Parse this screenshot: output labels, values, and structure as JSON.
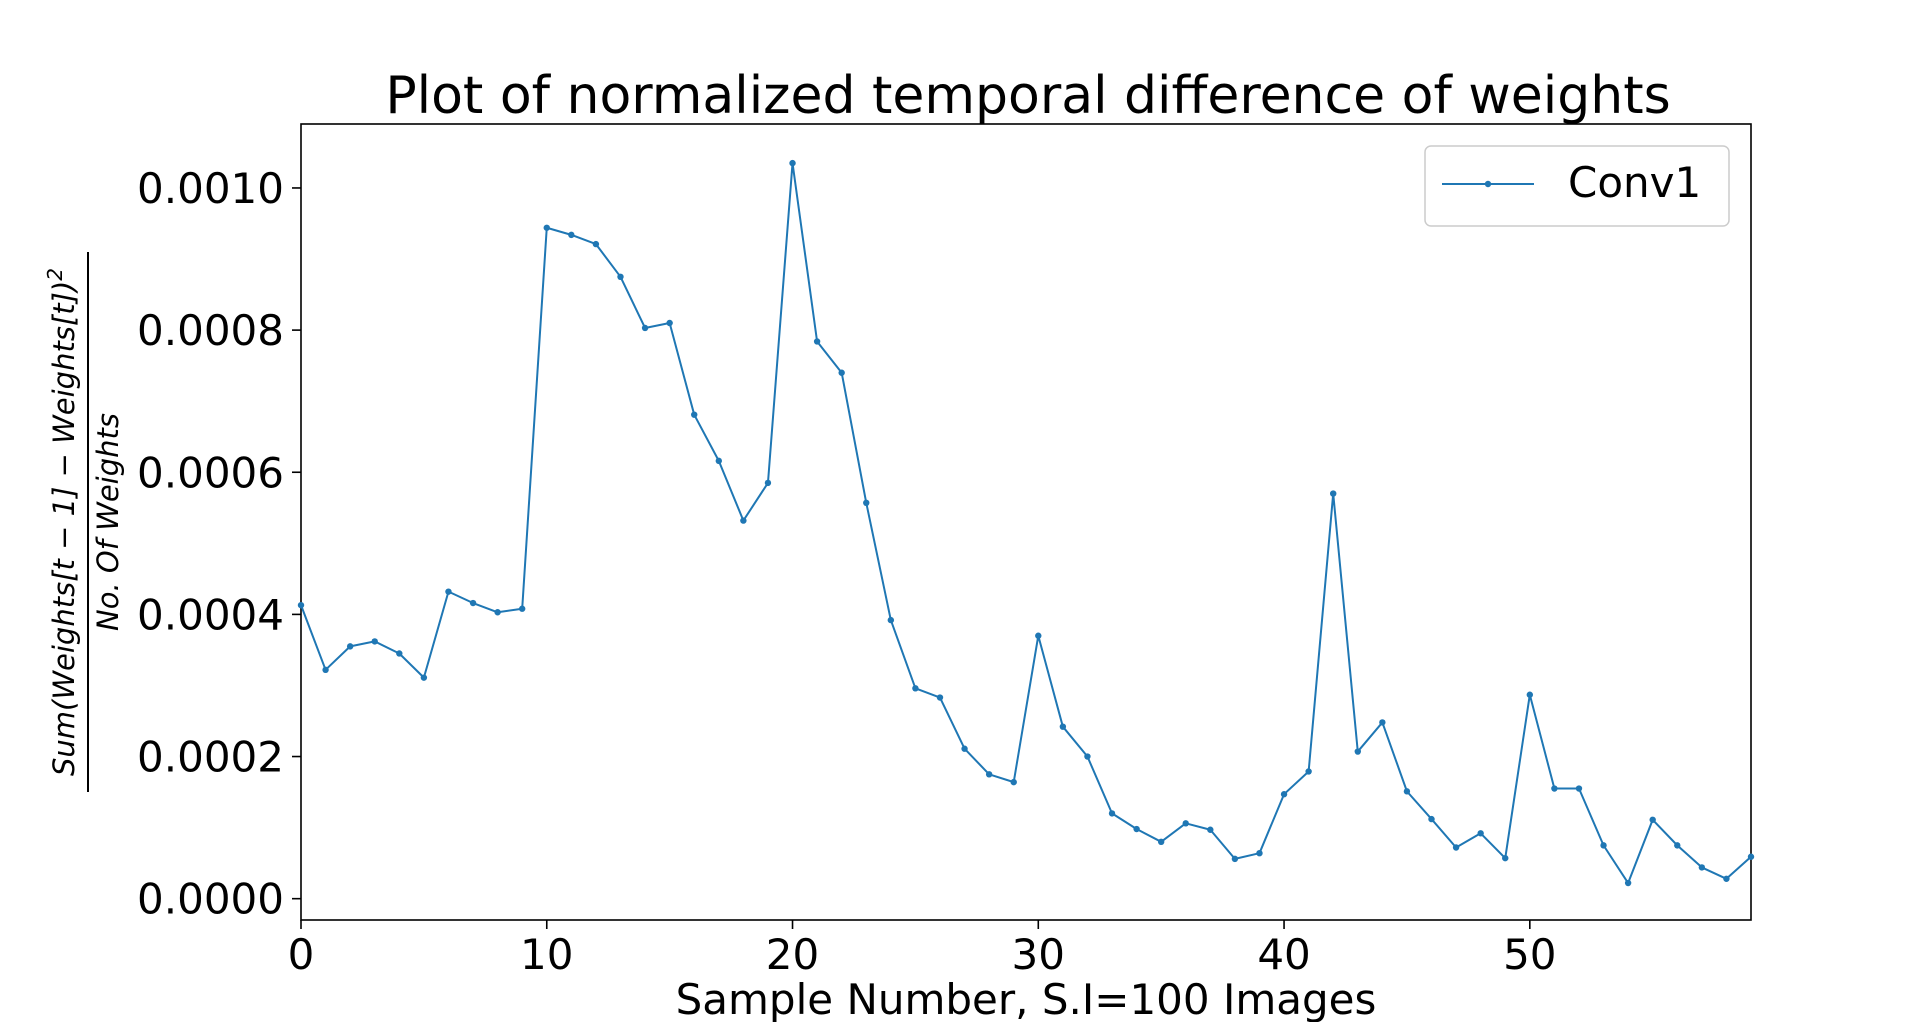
{
  "chart_data": {
    "type": "line",
    "title": "Plot of normalized temporal difference of weights",
    "xlabel": "Sample Number, S.I=100 Images",
    "ylabel": {
      "numerator": "Sum(Weights[t − 1] − Weights[t])",
      "exponent": "2",
      "denominator": "No.  Of Weights"
    },
    "xlim": [
      0,
      59
    ],
    "ylim": [
      -3e-05,
      0.00109
    ],
    "x_ticks": [
      0,
      10,
      20,
      30,
      40,
      50
    ],
    "x_tick_labels": [
      "0",
      "10",
      "20",
      "30",
      "40",
      "50"
    ],
    "y_ticks": [
      0,
      0.0002,
      0.0004,
      0.0006,
      0.0008,
      0.001
    ],
    "y_tick_labels": [
      "0.0000",
      "0.0002",
      "0.0004",
      "0.0006",
      "0.0008",
      "0.0010"
    ],
    "grid": false,
    "legend_position": "top-right",
    "series": [
      {
        "name": "Conv1",
        "color": "#1f77b4",
        "marker": "dot",
        "x": [
          0,
          1,
          2,
          3,
          4,
          5,
          6,
          7,
          8,
          9,
          10,
          11,
          12,
          13,
          14,
          15,
          16,
          17,
          18,
          19,
          20,
          21,
          22,
          23,
          24,
          25,
          26,
          27,
          28,
          29,
          30,
          31,
          32,
          33,
          34,
          35,
          36,
          37,
          38,
          39,
          40,
          41,
          42,
          43,
          44,
          45,
          46,
          47,
          48,
          49,
          50,
          51,
          52,
          53,
          54,
          55,
          56,
          57,
          58,
          59
        ],
        "y": [
          0.000413,
          0.000322,
          0.000355,
          0.000362,
          0.000345,
          0.000311,
          0.000432,
          0.000416,
          0.000403,
          0.000408,
          0.000944,
          0.000934,
          0.000921,
          0.000875,
          0.000803,
          0.00081,
          0.000681,
          0.000616,
          0.000532,
          0.000585,
          0.001035,
          0.000784,
          0.00074,
          0.000557,
          0.000392,
          0.000296,
          0.000283,
          0.000211,
          0.000175,
          0.000164,
          0.00037,
          0.000242,
          0.0002,
          0.00012,
          9.8e-05,
          8e-05,
          0.000106,
          9.7e-05,
          5.6e-05,
          6.4e-05,
          0.000147,
          0.000179,
          0.00057,
          0.000207,
          0.000248,
          0.000151,
          0.000112,
          7.2e-05,
          9.2e-05,
          5.7e-05,
          0.000287,
          0.000155,
          0.000155,
          7.5e-05,
          2.2e-05,
          0.000111,
          7.5e-05,
          4.4e-05,
          2.8e-05,
          5.9e-05
        ]
      }
    ]
  }
}
